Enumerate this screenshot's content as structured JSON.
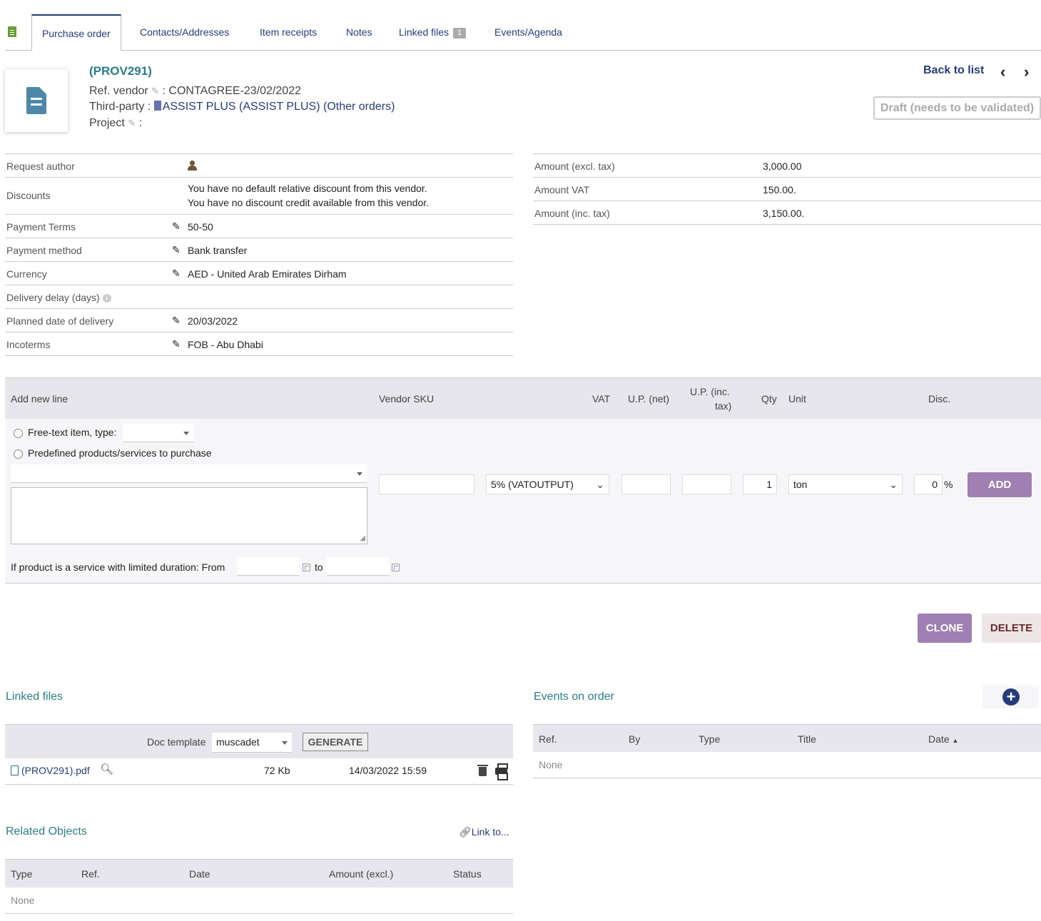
{
  "tabs": [
    {
      "label": "Purchase order",
      "active": true
    },
    {
      "label": "Contacts/Addresses"
    },
    {
      "label": "Item receipts"
    },
    {
      "label": "Notes"
    },
    {
      "label": "Linked files",
      "badge": "1"
    },
    {
      "label": "Events/Agenda"
    }
  ],
  "header": {
    "ref": "(PROV291)",
    "ref_vendor_label": "Ref. vendor",
    "ref_vendor_value": ": CONTAGREE-23/02/2022",
    "thirdparty_label": "Third-party :",
    "thirdparty_value": "ASSIST PLUS (ASSIST PLUS)",
    "other_orders": "(Other orders)",
    "project_label": "Project",
    "project_value": ":",
    "back_to_list": "Back to list",
    "status": "Draft (needs to be validated)"
  },
  "fields": {
    "request_author": "Request author",
    "discounts": "Discounts",
    "discount_line1": "You have no default relative discount from this vendor.",
    "discount_line2": "You have no discount credit available from this vendor.",
    "payment_terms": "Payment Terms",
    "payment_terms_value": "50-50",
    "payment_method": "Payment method",
    "payment_method_value": "Bank transfer",
    "currency": "Currency",
    "currency_value": "AED - United Arab Emirates Dirham",
    "delivery_delay": "Delivery delay (days)",
    "planned_date": "Planned date of delivery",
    "planned_date_value": "20/03/2022",
    "incoterms": "Incoterms",
    "incoterms_value": "FOB - Abu Dhabi"
  },
  "amounts": {
    "excl_label": "Amount (excl. tax)",
    "excl_value": "3,000.00",
    "vat_label": "Amount VAT",
    "vat_value": "150.00",
    "inc_label": "Amount (inc. tax)",
    "inc_value": "3,150.00",
    "dot": "."
  },
  "lines": {
    "add_new_line": "Add new line",
    "vendor_sku": "Vendor SKU",
    "vat": "VAT",
    "up_net": "U.P. (net)",
    "up_inc_1": "U.P. (inc.",
    "up_inc_2": "tax)",
    "qty": "Qty",
    "unit": "Unit",
    "disc": "Disc.",
    "free_text": "Free-text item, type:",
    "predefined": "Predefined products/services to purchase",
    "vat_select": "5% (VATOUTPUT)",
    "qty_value": "1",
    "unit_select": "ton",
    "disc_value": "0",
    "percent": "%",
    "add_button": "ADD",
    "service_from": "If product is a service with limited duration: From",
    "service_to": "to"
  },
  "actions": {
    "clone": "CLONE",
    "delete": "DELETE"
  },
  "linked_files": {
    "title": "Linked files",
    "doc_template_label": "Doc template",
    "doc_template_value": "muscadet",
    "generate": "GENERATE",
    "file_name": "(PROV291).pdf",
    "file_size": "72 Kb",
    "file_date": "14/03/2022 15:59"
  },
  "events": {
    "title": "Events on order",
    "cols": {
      "ref": "Ref.",
      "by": "By",
      "type": "Type",
      "title": "Title",
      "date": "Date"
    },
    "none": "None"
  },
  "related": {
    "title": "Related Objects",
    "link_to": "Link to...",
    "cols": {
      "type": "Type",
      "ref": "Ref.",
      "date": "Date",
      "amount": "Amount (excl.)",
      "status": "Status"
    },
    "none": "None"
  }
}
